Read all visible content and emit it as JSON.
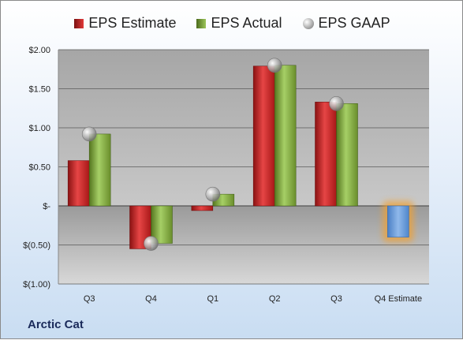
{
  "chart_data": {
    "type": "bar",
    "categories": [
      "Q3",
      "Q4",
      "Q1",
      "Q2",
      "Q3",
      "Q4 Estimate"
    ],
    "series": [
      {
        "name": "EPS Estimate",
        "values": [
          0.58,
          -0.55,
          -0.06,
          1.79,
          1.33,
          -0.4
        ],
        "color": "#d02020"
      },
      {
        "name": "EPS Actual",
        "values": [
          0.92,
          -0.48,
          0.15,
          1.8,
          1.31,
          null
        ],
        "color": "#7fa83a"
      },
      {
        "name": "EPS GAAP",
        "values": [
          0.92,
          -0.48,
          0.15,
          1.8,
          1.31,
          null
        ],
        "color": "#b0b0b0"
      }
    ],
    "highlight": {
      "category": "Q4 Estimate",
      "value": -0.4,
      "color": "#6fa0dc",
      "glow": "#f0a030"
    },
    "ylim": [
      -1.0,
      2.0
    ],
    "yticks": [
      -1.0,
      -0.5,
      0,
      0.5,
      1.0,
      1.5,
      2.0
    ],
    "ytick_labels": [
      "$(1.00)",
      "$(0.50)",
      "$-",
      "$0.50",
      "$1.00",
      "$1.50",
      "$2.00"
    ],
    "legend_position": "top",
    "grid": true
  },
  "company": "Arctic Cat"
}
